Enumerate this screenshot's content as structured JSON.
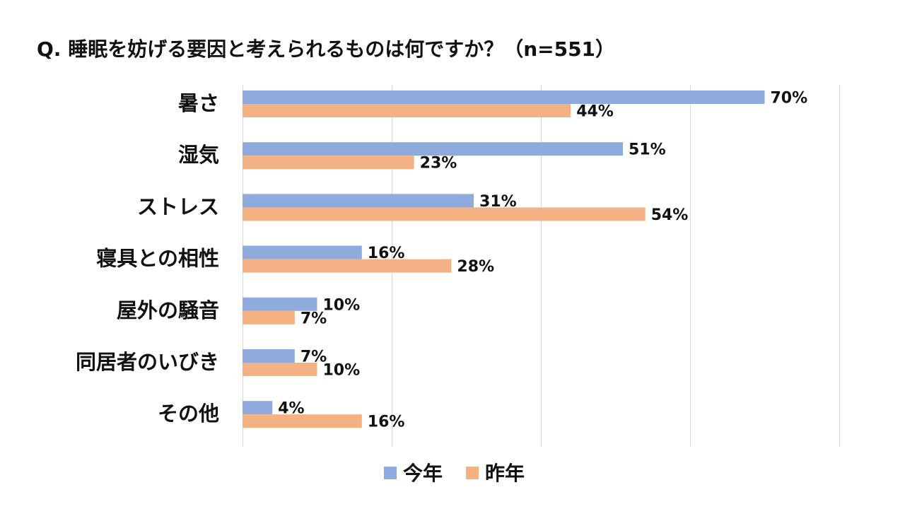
{
  "chart_data": {
    "type": "bar",
    "orientation": "horizontal",
    "title": "Q. 睡眠を妨げる要因と考えられるものは何ですか？（n=551）",
    "categories": [
      "暑さ",
      "湿気",
      "ストレス",
      "寝具との相性",
      "屋外の騒音",
      "同居者のいびき",
      "その他"
    ],
    "series": [
      {
        "name": "今年",
        "color": "#8FAADC",
        "values": [
          70,
          51,
          31,
          16,
          10,
          7,
          4
        ],
        "labels": [
          "70%",
          "51%",
          "31%",
          "16%",
          "10%",
          "7%",
          "4%"
        ]
      },
      {
        "name": "昨年",
        "color": "#F4B183",
        "values": [
          44,
          23,
          54,
          28,
          7,
          10,
          16
        ],
        "labels": [
          "44%",
          "23%",
          "54%",
          "28%",
          "7%",
          "10%",
          "16%"
        ]
      }
    ],
    "xlim": [
      0,
      80
    ],
    "grid": true,
    "legend_position": "bottom",
    "xlabel": "",
    "ylabel": ""
  }
}
